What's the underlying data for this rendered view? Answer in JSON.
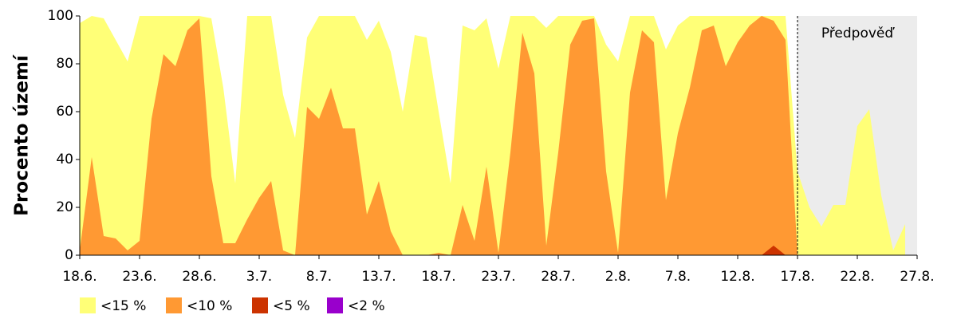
{
  "chart_data": {
    "type": "area",
    "y_label": "Procento území",
    "categories": [
      "18.6.",
      null,
      null,
      null,
      null,
      "23.6.",
      null,
      null,
      null,
      null,
      "28.6.",
      null,
      null,
      null,
      null,
      "3.7.",
      null,
      null,
      null,
      null,
      "8.7.",
      null,
      null,
      null,
      null,
      "13.7.",
      null,
      null,
      null,
      null,
      "18.7.",
      null,
      null,
      null,
      null,
      "23.7.",
      null,
      null,
      null,
      null,
      "28.7.",
      null,
      null,
      null,
      null,
      "2.8.",
      null,
      null,
      null,
      null,
      "7.8.",
      null,
      null,
      null,
      null,
      "12.8.",
      null,
      null,
      null,
      null,
      "17.8.",
      null,
      null,
      null,
      null,
      "22.8.",
      null,
      null,
      null,
      null,
      "27.8."
    ],
    "series": [
      {
        "name": "<15 %",
        "color": "#ffff77",
        "values": [
          97,
          100,
          99,
          90,
          81,
          100,
          100,
          100,
          100,
          100,
          100,
          99,
          70,
          30,
          100,
          100,
          100,
          67,
          49,
          91,
          100,
          100,
          100,
          100,
          90,
          98,
          85,
          60,
          92,
          91,
          60,
          30,
          96,
          94,
          99,
          78,
          100,
          100,
          100,
          95,
          100,
          100,
          100,
          100,
          88,
          81,
          100,
          100,
          100,
          86,
          96,
          100,
          100,
          100,
          100,
          100,
          100,
          100,
          100,
          100,
          35,
          20,
          12,
          21,
          21,
          54,
          61,
          25,
          2,
          13,
          null
        ]
      },
      {
        "name": "<10 %",
        "color": "#ff9933",
        "values": [
          2,
          41,
          8,
          7,
          2,
          6,
          57,
          84,
          79,
          94,
          99,
          33,
          5,
          5,
          15,
          24,
          31,
          2,
          0,
          62,
          57,
          70,
          53,
          53,
          17,
          31,
          10,
          0,
          0,
          0,
          1,
          0,
          21,
          6,
          37,
          1,
          43,
          93,
          76,
          4,
          43,
          88,
          98,
          99,
          35,
          1,
          68,
          94,
          89,
          23,
          51,
          70,
          94,
          96,
          79,
          89,
          96,
          100,
          98,
          90,
          0,
          null,
          null,
          null,
          null,
          null,
          null,
          null,
          null,
          null,
          null
        ]
      },
      {
        "name": "<5 %",
        "color": "#cc3300",
        "values": [
          0,
          0,
          0,
          0,
          0,
          0,
          0,
          0,
          0,
          0,
          0,
          0,
          0,
          0,
          0,
          0,
          0,
          0,
          0,
          0,
          0,
          0,
          0,
          0,
          0,
          0,
          0,
          0,
          0,
          0,
          0,
          0,
          0,
          0,
          0,
          0,
          0,
          0,
          0,
          0,
          0,
          0,
          0,
          0,
          0,
          0,
          0,
          0,
          0,
          0,
          0,
          0,
          0,
          0,
          0,
          0,
          0,
          0,
          4,
          0,
          0,
          null,
          null,
          null,
          null,
          null,
          null,
          null,
          null,
          null,
          null
        ]
      },
      {
        "name": "<2 %",
        "color": "#9900cc",
        "values": [
          0,
          0,
          0,
          0,
          0,
          0,
          0,
          0,
          0,
          0,
          0,
          0,
          0,
          0,
          0,
          0,
          0,
          0,
          0,
          0,
          0,
          0,
          0,
          0,
          0,
          0,
          0,
          0,
          0,
          0,
          0,
          0,
          0,
          0,
          0,
          0,
          0,
          0,
          0,
          0,
          0,
          0,
          0,
          0,
          0,
          0,
          0,
          0,
          0,
          0,
          0,
          0,
          0,
          0,
          0,
          0,
          0,
          0,
          0,
          0,
          0,
          null,
          null,
          null,
          null,
          null,
          null,
          null,
          null,
          null,
          null
        ]
      }
    ],
    "forecast": {
      "label": "Předpověď",
      "start": "17.8.",
      "color": "#ececec"
    },
    "ylim": [
      0,
      100
    ],
    "yticks": [
      0,
      20,
      40,
      60,
      80,
      100
    ]
  }
}
